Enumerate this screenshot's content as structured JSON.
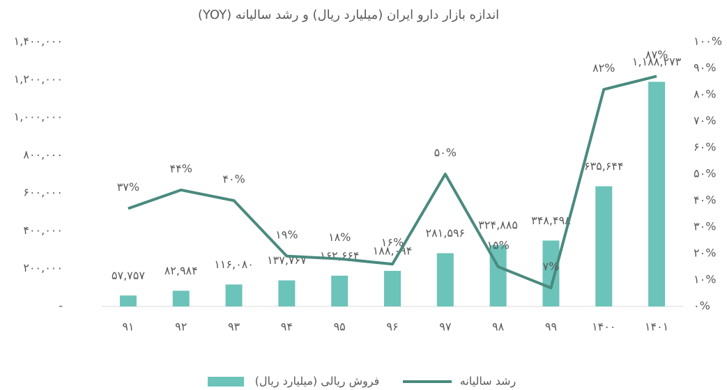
{
  "chart_data": {
    "type": "bar-line",
    "title": "اندازه بازار دارو ایران (میلیارد ریال) و رشد سالیانه (YOY)",
    "categories": [
      "۹۱",
      "۹۲",
      "۹۳",
      "۹۴",
      "۹۵",
      "۹۶",
      "۹۷",
      "۹۸",
      "۹۹",
      "۱۴۰۰",
      "۱۴۰۱"
    ],
    "series": [
      {
        "name": "فروش ریالی (میلیارد ریال)",
        "type": "bar",
        "color": "#6cc3b9",
        "values": [
          57757,
          82984,
          116080,
          137767,
          162664,
          188094,
          281596,
          324885,
          348498,
          635644,
          1188273
        ],
        "value_labels": [
          "۵۷,۷۵۷",
          "۸۲,۹۸۴",
          "۱۱۶,۰۸۰",
          "۱۳۷,۷۶۷",
          "۱۶۲,۶۶۴",
          "۱۸۸,۰۹۴",
          "۲۸۱,۵۹۶",
          "۳۲۴,۸۸۵",
          "۳۴۸,۴۹۸",
          "۶۳۵,۶۴۴",
          "۱,۱۸۸,۲۷۳"
        ]
      },
      {
        "name": "رشد سالیانه",
        "type": "line",
        "axis": "y2",
        "color": "#4a8a7e",
        "values": [
          37,
          44,
          40,
          19,
          18,
          16,
          50,
          15,
          7,
          82,
          87
        ],
        "value_labels": [
          "۳۷%",
          "۴۴%",
          "۴۰%",
          "۱۹%",
          "۱۸%",
          "۱۶%",
          "۵۰%",
          "۱۵%",
          "۷%",
          "۸۲%",
          "۸۷%"
        ]
      }
    ],
    "ylim": [
      0,
      1400000
    ],
    "yticks": [
      {
        "value": 0,
        "label": "-"
      },
      {
        "value": 200000,
        "label": "۲۰۰,۰۰۰"
      },
      {
        "value": 400000,
        "label": "۴۰۰,۰۰۰"
      },
      {
        "value": 600000,
        "label": "۶۰۰,۰۰۰"
      },
      {
        "value": 800000,
        "label": "۸۰۰,۰۰۰"
      },
      {
        "value": 1000000,
        "label": "۱,۰۰۰,۰۰۰"
      },
      {
        "value": 1200000,
        "label": "۱,۲۰۰,۰۰۰"
      },
      {
        "value": 1400000,
        "label": "۱,۴۰۰,۰۰۰"
      }
    ],
    "y2lim": [
      0,
      100
    ],
    "y2ticks": [
      {
        "value": 0,
        "label": "۰%"
      },
      {
        "value": 10,
        "label": "۱۰%"
      },
      {
        "value": 20,
        "label": "۲۰%"
      },
      {
        "value": 30,
        "label": "۳۰%"
      },
      {
        "value": 40,
        "label": "۴۰%"
      },
      {
        "value": 50,
        "label": "۵۰%"
      },
      {
        "value": 60,
        "label": "۶۰%"
      },
      {
        "value": 70,
        "label": "۷۰%"
      },
      {
        "value": 80,
        "label": "۸۰%"
      },
      {
        "value": 90,
        "label": "۹۰%"
      },
      {
        "value": 100,
        "label": "۱۰۰%"
      }
    ],
    "legend": "bottom"
  }
}
